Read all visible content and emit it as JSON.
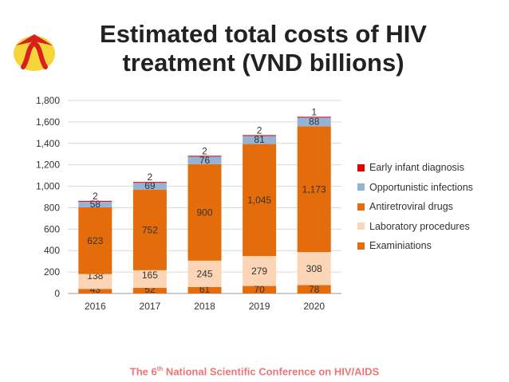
{
  "title_line1": "Estimated total costs of HIV",
  "title_line2": "treatment (VND billions)",
  "footer": {
    "pre": "The 6",
    "sup": "th",
    "post": " National Scientific Conference on HIV/AIDS"
  },
  "colors": {
    "examinations": "#e46c0a",
    "laboratory": "#fbd5b5",
    "antiretroviral": "#e46c0a",
    "opportunistic": "#95b3d7",
    "early_infant": "#e00000",
    "logo_bg": "#f5d53a",
    "logo_ribbon": "#d8201f"
  },
  "chart_data": {
    "type": "bar",
    "stacked": true,
    "title": "Estimated total costs of HIV treatment (VND billions)",
    "categories": [
      "2016",
      "2017",
      "2018",
      "2019",
      "2020"
    ],
    "ylim": [
      0,
      1800
    ],
    "yticks": [
      0,
      200,
      400,
      600,
      800,
      1000,
      1200,
      1400,
      1600,
      1800
    ],
    "ytick_labels": [
      "0",
      "200",
      "400",
      "600",
      "800",
      "1,000",
      "1,200",
      "1,400",
      "1,600",
      "1,800"
    ],
    "series": [
      {
        "name": "Examiniations",
        "key": "examinations",
        "values": [
          43,
          52,
          61,
          70,
          78
        ],
        "labels": [
          "43",
          "52",
          "61",
          "70",
          "78"
        ]
      },
      {
        "name": "Laboratory procedures",
        "key": "laboratory",
        "values": [
          138,
          165,
          245,
          279,
          308
        ],
        "labels": [
          "138",
          "165",
          "245",
          "279",
          "308"
        ]
      },
      {
        "name": "Antiretroviral drugs",
        "key": "antiretroviral",
        "values": [
          623,
          752,
          900,
          1045,
          1173
        ],
        "labels": [
          "623",
          "752",
          "900",
          "1,045",
          "1,173"
        ]
      },
      {
        "name": "Opportunistic infections",
        "key": "opportunistic",
        "values": [
          58,
          69,
          76,
          81,
          88
        ],
        "labels": [
          "58",
          "69",
          "76",
          "81",
          "88"
        ]
      },
      {
        "name": "Early infant diagnosis",
        "key": "early_infant",
        "values": [
          2,
          2,
          2,
          2,
          1
        ],
        "labels": [
          "2",
          "2",
          "2",
          "2",
          "1"
        ]
      }
    ],
    "legend_order": [
      "early_infant",
      "opportunistic",
      "antiretroviral",
      "laboratory",
      "examinations"
    ],
    "legend_position": "right"
  }
}
